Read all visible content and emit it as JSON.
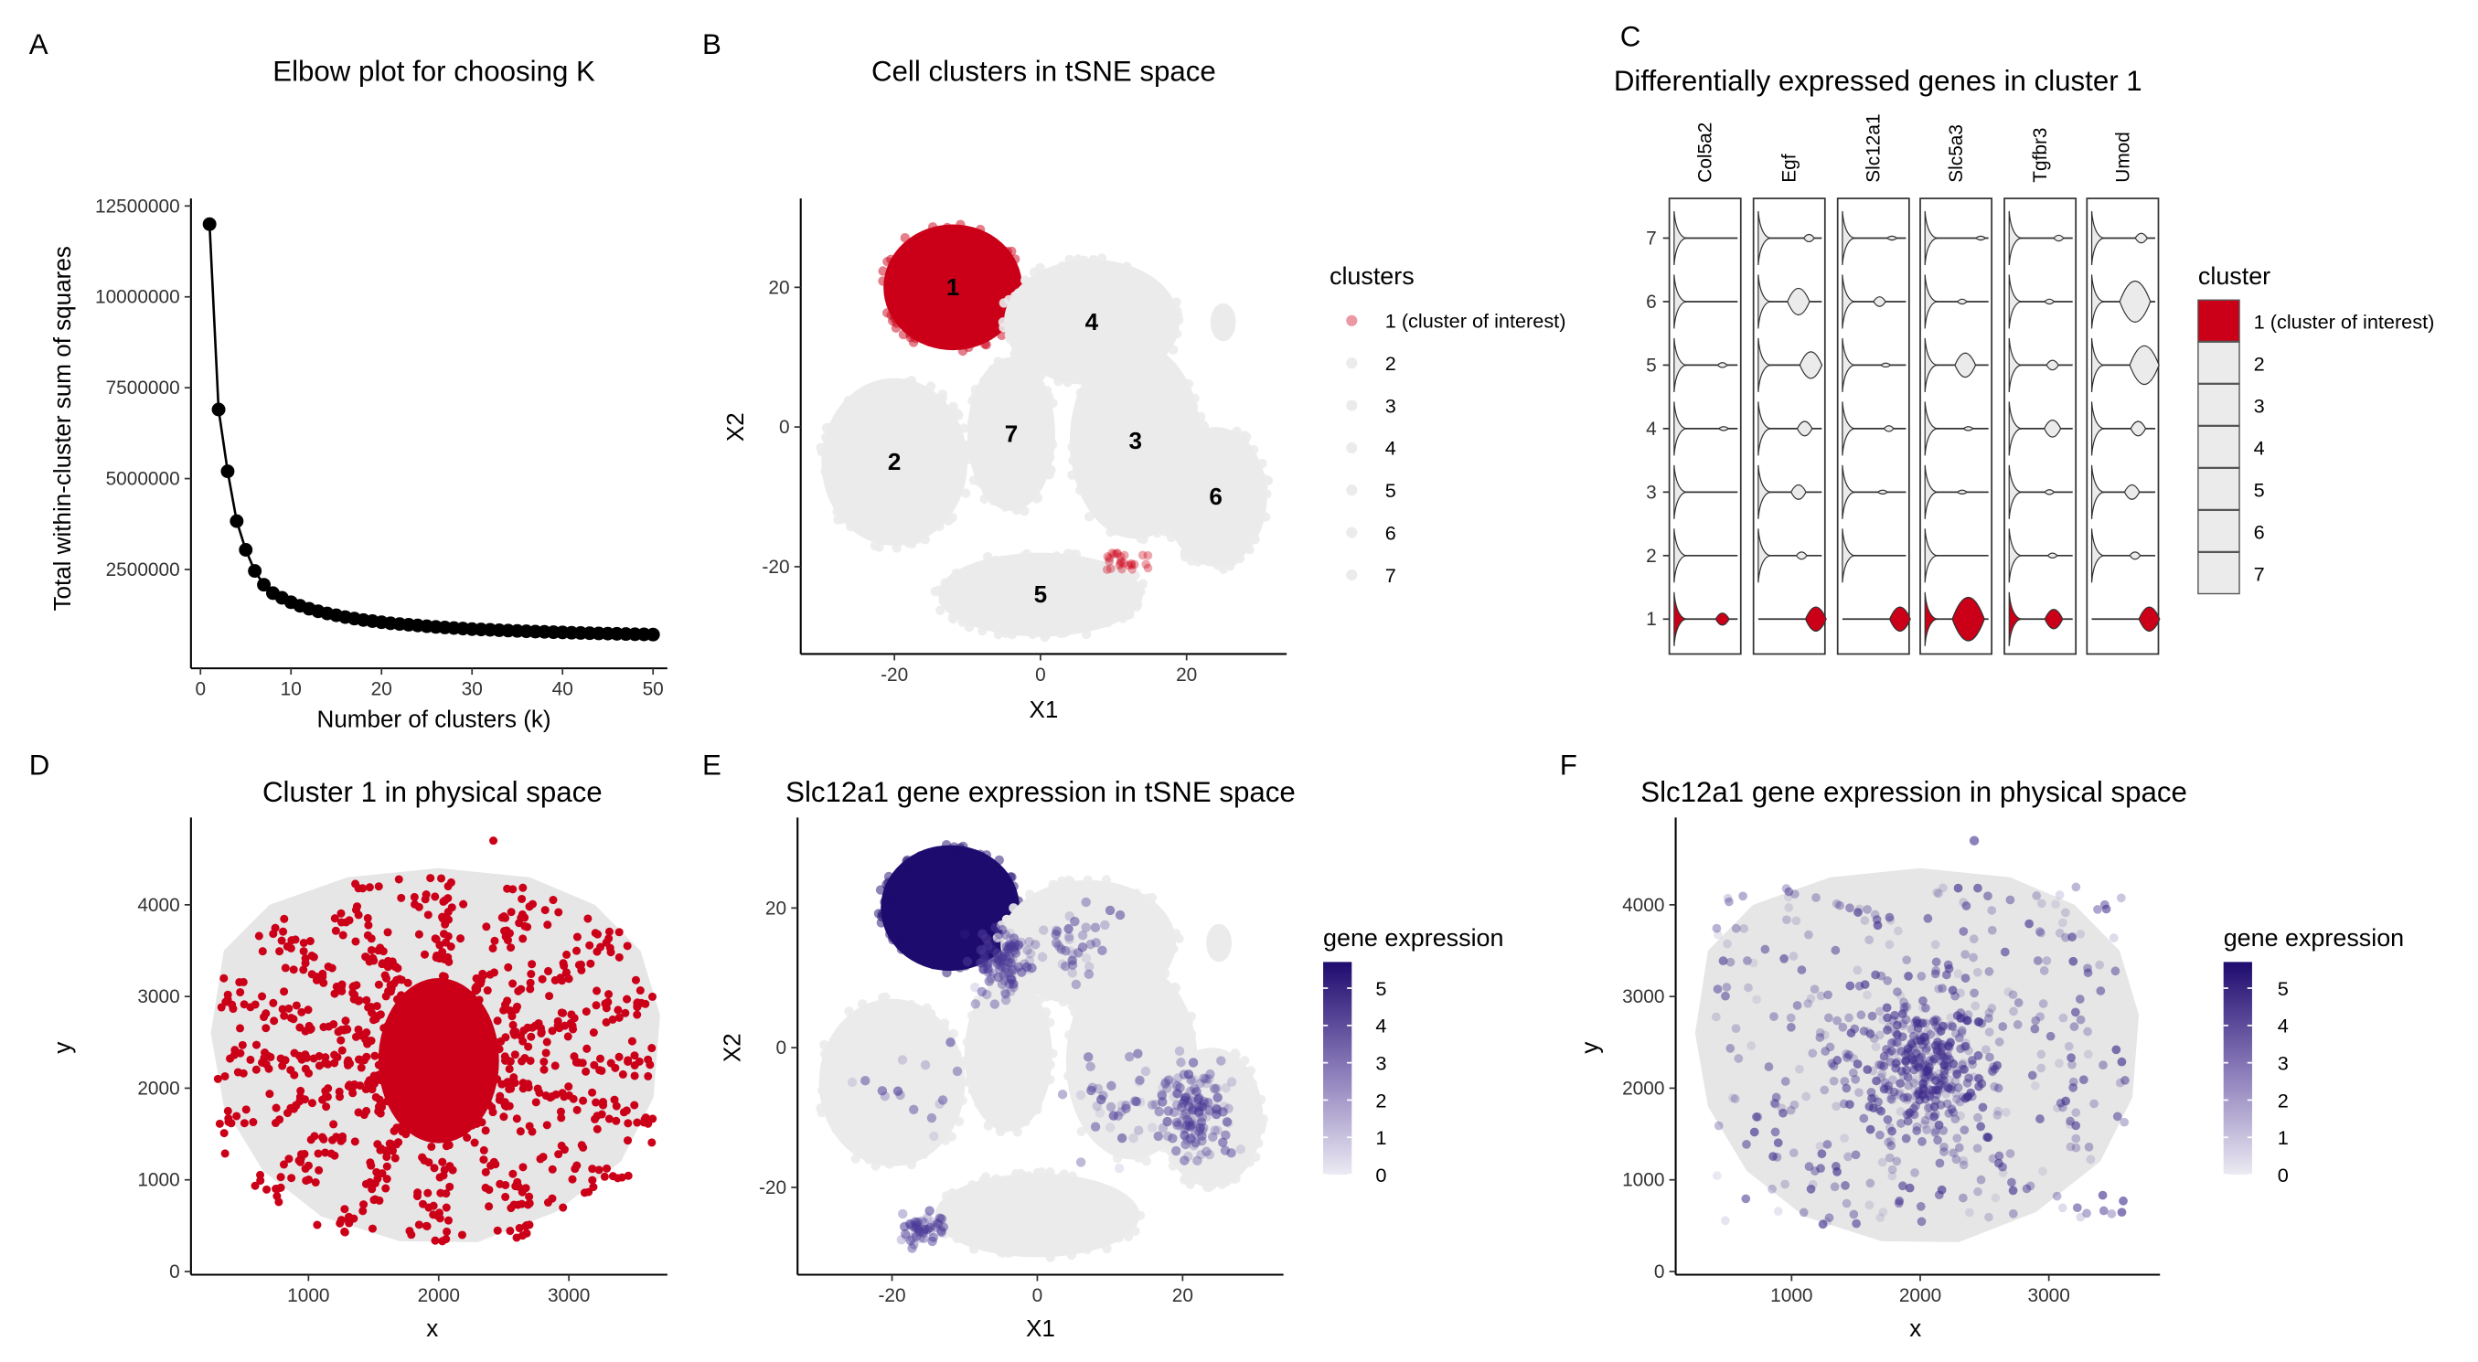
{
  "colors": {
    "cluster_of_interest": "#CB0018",
    "other": "#EBEBEB",
    "expr_low": "#ECEAF3",
    "expr_high": "#1E0B6E",
    "axis": "#000000"
  },
  "panels": {
    "A": "A",
    "B": "B",
    "C": "C",
    "D": "D",
    "E": "E",
    "F": "F"
  },
  "chart_data": [
    {
      "id": "A",
      "type": "line",
      "title": "Elbow plot for choosing K",
      "xlabel": "Number of clusters (k)",
      "ylabel": "Total within-cluster sum of squares",
      "xlim": [
        0,
        50
      ],
      "ylim": [
        0,
        12500000
      ],
      "xticks": [
        "0",
        "10",
        "20",
        "30",
        "40",
        "50"
      ],
      "yticks": [
        "2500000",
        "5000000",
        "7500000",
        "10000000",
        "12500000"
      ],
      "x": [
        1,
        2,
        3,
        4,
        5,
        6,
        7,
        8,
        9,
        10,
        11,
        12,
        13,
        14,
        15,
        16,
        17,
        18,
        19,
        20,
        21,
        22,
        23,
        24,
        25,
        26,
        27,
        28,
        29,
        30,
        31,
        32,
        33,
        34,
        35,
        36,
        37,
        38,
        39,
        40,
        41,
        42,
        43,
        44,
        45,
        46,
        47,
        48,
        49,
        50
      ],
      "y": [
        12000000,
        6900000,
        5200000,
        3830000,
        3040000,
        2460000,
        2080000,
        1850000,
        1720000,
        1600000,
        1500000,
        1420000,
        1350000,
        1290000,
        1240000,
        1190000,
        1150000,
        1110000,
        1080000,
        1050000,
        1020000,
        1000000,
        980000,
        960000,
        940000,
        920000,
        905000,
        890000,
        875000,
        860000,
        850000,
        840000,
        830000,
        820000,
        810000,
        800000,
        792000,
        784000,
        776000,
        768000,
        760000,
        754000,
        748000,
        742000,
        736000,
        730000,
        725000,
        720000,
        715000,
        710000
      ],
      "grid": false
    },
    {
      "id": "B",
      "type": "scatter",
      "title": "Cell clusters in tSNE space",
      "xlabel": "X1",
      "ylabel": "X2",
      "xlim": [
        -33,
        34
      ],
      "ylim": [
        -32,
        32
      ],
      "xticks": [
        "-20",
        "0",
        "20"
      ],
      "yticks": [
        "-20",
        "0",
        "20"
      ],
      "legend": {
        "title": "clusters",
        "position": "right",
        "entries": [
          "1 (cluster of interest)",
          "2",
          "3",
          "4",
          "5",
          "6",
          "7"
        ]
      },
      "clusters": [
        {
          "label": "1",
          "center": [
            -12,
            20
          ],
          "spread": [
            9.5,
            9
          ],
          "highlight": true
        },
        {
          "label": "2",
          "center": [
            -20,
            -5
          ],
          "spread": [
            10,
            12
          ]
        },
        {
          "label": "3",
          "center": [
            13,
            -2
          ],
          "spread": [
            9,
            14
          ]
        },
        {
          "label": "4",
          "center": [
            7,
            15
          ],
          "spread": [
            12,
            9
          ]
        },
        {
          "label": "5",
          "center": [
            0,
            -24
          ],
          "spread": [
            14,
            6
          ]
        },
        {
          "label": "6",
          "center": [
            24,
            -10
          ],
          "spread": [
            7,
            10
          ]
        },
        {
          "label": "7",
          "center": [
            -4,
            -1
          ],
          "spread": [
            6,
            11
          ]
        }
      ],
      "grid": false
    },
    {
      "id": "C",
      "type": "violin",
      "title": "Differentially expressed genes in cluster 1",
      "genes": [
        "Col5a2",
        "Egf",
        "Slc12a1",
        "Slc5a3",
        "Tgfbr3",
        "Umod"
      ],
      "clusters": [
        "1",
        "2",
        "3",
        "4",
        "5",
        "6",
        "7"
      ],
      "legend": {
        "title": "cluster",
        "position": "right",
        "entries": [
          "1 (cluster of interest)",
          "2",
          "3",
          "4",
          "5",
          "6",
          "7"
        ]
      },
      "expression_mode_relative": {
        "Col5a2": [
          [
            0.78,
            0.25
          ],
          [
            0,
            0
          ],
          [
            0,
            0
          ],
          [
            0.8,
            0.08
          ],
          [
            0.78,
            0.1
          ],
          [
            0,
            0
          ],
          [
            0,
            0
          ]
        ],
        "Egf": [
          [
            0.93,
            0.5
          ],
          [
            0.7,
            0.15
          ],
          [
            0.65,
            0.3
          ],
          [
            0.75,
            0.3
          ],
          [
            0.85,
            0.55
          ],
          [
            0.65,
            0.55
          ],
          [
            0.82,
            0.15
          ]
        ],
        "Slc12a1": [
          [
            0.93,
            0.5
          ],
          [
            0,
            0
          ],
          [
            0.65,
            0.05
          ],
          [
            0.75,
            0.12
          ],
          [
            0.7,
            0.08
          ],
          [
            0.6,
            0.2
          ],
          [
            0.8,
            0.06
          ]
        ],
        "Slc5a3": [
          [
            0.7,
            0.9
          ],
          [
            0,
            0
          ],
          [
            0.6,
            0.03
          ],
          [
            0.7,
            0.08
          ],
          [
            0.65,
            0.5
          ],
          [
            0.6,
            0.1
          ],
          [
            0.9,
            0.04
          ]
        ],
        "Tgfbr3": [
          [
            0.72,
            0.4
          ],
          [
            0.7,
            0.1
          ],
          [
            0.65,
            0.1
          ],
          [
            0.7,
            0.35
          ],
          [
            0.7,
            0.2
          ],
          [
            0.65,
            0.1
          ],
          [
            0.8,
            0.12
          ]
        ],
        "Umod": [
          [
            0.93,
            0.5
          ],
          [
            0.7,
            0.15
          ],
          [
            0.65,
            0.3
          ],
          [
            0.75,
            0.3
          ],
          [
            0.85,
            0.8
          ],
          [
            0.7,
            0.85
          ],
          [
            0.8,
            0.2
          ]
        ]
      },
      "cluster1_zero_peak": {
        "Col5a2": true,
        "Egf": false,
        "Slc12a1": false,
        "Slc5a3": true,
        "Tgfbr3": true,
        "Umod": false
      }
    },
    {
      "id": "D",
      "type": "scatter",
      "title": "Cluster 1 in physical space",
      "xlabel": "x",
      "ylabel": "y",
      "xlim": [
        100,
        3750
      ],
      "ylim": [
        -50,
        4900
      ],
      "xticks": [
        "1000",
        "2000",
        "3000"
      ],
      "yticks": [
        "0",
        "1000",
        "2000",
        "3000",
        "4000"
      ],
      "highlight_center": [
        2000,
        2300
      ],
      "grid": false
    },
    {
      "id": "E",
      "type": "scatter",
      "title": "Slc12a1 gene expression in tSNE space",
      "xlabel": "X1",
      "ylabel": "X2",
      "xlim": [
        -33,
        34
      ],
      "ylim": [
        -32,
        32
      ],
      "xticks": [
        "-20",
        "0",
        "20"
      ],
      "yticks": [
        "-20",
        "0",
        "20"
      ],
      "legend": {
        "title": "gene expression",
        "position": "right",
        "range": [
          0,
          5.7
        ],
        "ticks": [
          "0",
          "1",
          "2",
          "3",
          "4",
          "5"
        ]
      },
      "grid": false
    },
    {
      "id": "F",
      "type": "scatter",
      "title": "Slc12a1 gene expression in physical space",
      "xlabel": "x",
      "ylabel": "y",
      "xlim": [
        100,
        3850
      ],
      "ylim": [
        -50,
        4900
      ],
      "xticks": [
        "1000",
        "2000",
        "3000"
      ],
      "yticks": [
        "0",
        "1000",
        "2000",
        "3000",
        "4000"
      ],
      "legend": {
        "title": "gene expression",
        "position": "right",
        "range": [
          0,
          5.7
        ],
        "ticks": [
          "0",
          "1",
          "2",
          "3",
          "4",
          "5"
        ]
      },
      "grid": false
    }
  ]
}
